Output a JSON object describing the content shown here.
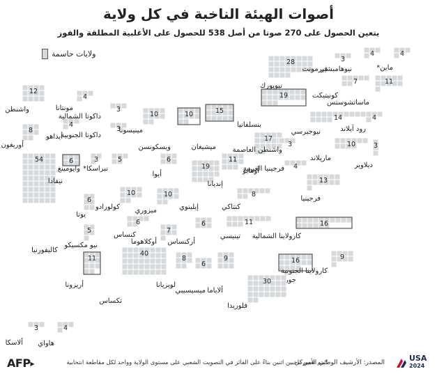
{
  "title": "أصوات الهيئة الناخبة في كل ولاية",
  "subtitle": "يتعين الحصول على 270 صوتا من أصل 538 للحصول على الأغلبية المطلقة والفوز",
  "legend": {
    "label": "ولايات حاسمة"
  },
  "colors": {
    "square": "#d5d9dc",
    "swing_border": "#555555",
    "grid_line": "#ffffff"
  },
  "states": [
    {
      "name": "واشنطن",
      "votes": 12
    },
    {
      "name": "أوريغون",
      "votes": 8
    },
    {
      "name": "كاليفورنيا",
      "votes": 54
    },
    {
      "name": "نيفادا",
      "votes": 6,
      "swing": true
    },
    {
      "name": "أيداهو",
      "votes": 4
    },
    {
      "name": "مونتانا",
      "votes": 4
    },
    {
      "name": "وايومينغ",
      "votes": 3
    },
    {
      "name": "يوتا",
      "votes": 6
    },
    {
      "name": "أريزونا",
      "votes": 11,
      "swing": true
    },
    {
      "name": "كولورادو",
      "votes": 10
    },
    {
      "name": "نيو مكسيكو",
      "votes": 5
    },
    {
      "name": "داكوتا الشمالية",
      "votes": 3
    },
    {
      "name": "داكوتا الجنوبية",
      "votes": 3
    },
    {
      "name": "نبراسكا*",
      "votes": 5
    },
    {
      "name": "كنساس",
      "votes": 6
    },
    {
      "name": "أوكلاهوما",
      "votes": 7
    },
    {
      "name": "تكساس",
      "votes": 40
    },
    {
      "name": "مينيسوتا",
      "votes": 10
    },
    {
      "name": "أيوا",
      "votes": 6
    },
    {
      "name": "ميزوري",
      "votes": 10
    },
    {
      "name": "أركنساس",
      "votes": 6
    },
    {
      "name": "لويزيانا",
      "votes": 8
    },
    {
      "name": "ويسكونسن",
      "votes": 10,
      "swing": true
    },
    {
      "name": "إيلينوي",
      "votes": 19
    },
    {
      "name": "ميسيسيبي",
      "votes": 6
    },
    {
      "name": "ميشيغان",
      "votes": 15,
      "swing": true
    },
    {
      "name": "إنديانا",
      "votes": 11
    },
    {
      "name": "كنتاكي",
      "votes": 8
    },
    {
      "name": "تينيسي",
      "votes": 11
    },
    {
      "name": "ألاباما",
      "votes": 9
    },
    {
      "name": "أوهايو",
      "votes": 17
    },
    {
      "name": "جورجيا",
      "votes": 16,
      "swing": true
    },
    {
      "name": "فلوريدا",
      "votes": 30
    },
    {
      "name": "كارولاينا الجنوبية",
      "votes": 9
    },
    {
      "name": "كارولاينا الشمالية",
      "votes": 16,
      "swing": true
    },
    {
      "name": "فرجينيا",
      "votes": 13
    },
    {
      "name": "فرجينيا الغربية",
      "votes": 4
    },
    {
      "name": "بنسلفانيا",
      "votes": 19,
      "swing": true
    },
    {
      "name": "نيويورك",
      "votes": 28
    },
    {
      "name": "فيرمونت",
      "votes": 3
    },
    {
      "name": "نيوهامبشير",
      "votes": 4
    },
    {
      "name": "ماين*",
      "votes": 4
    },
    {
      "name": "ماساتشوستس",
      "votes": 11
    },
    {
      "name": "كونيتيكت",
      "votes": 7
    },
    {
      "name": "رود آيلاند",
      "votes": 4
    },
    {
      "name": "نيوجيرسي",
      "votes": 14
    },
    {
      "name": "ديلاوير",
      "votes": 3
    },
    {
      "name": "ماريلاند",
      "votes": 10
    },
    {
      "name": "واشنطن العاصمة",
      "votes": 3
    },
    {
      "name": "ألاسكا",
      "votes": 3
    },
    {
      "name": "هاواي",
      "votes": 4
    }
  ],
  "footer": {
    "note": "*يتم تعيين ناخبين اثنين بناءً على الفائز في التصويت الشعبي على مستوى الولاية وواحد لكل مقاطعة انتخابية",
    "source": "المصدر: الأرشيف الوطني الأميركي",
    "logo": "AFP",
    "badge_line1": "USA",
    "badge_line2": "2024"
  }
}
